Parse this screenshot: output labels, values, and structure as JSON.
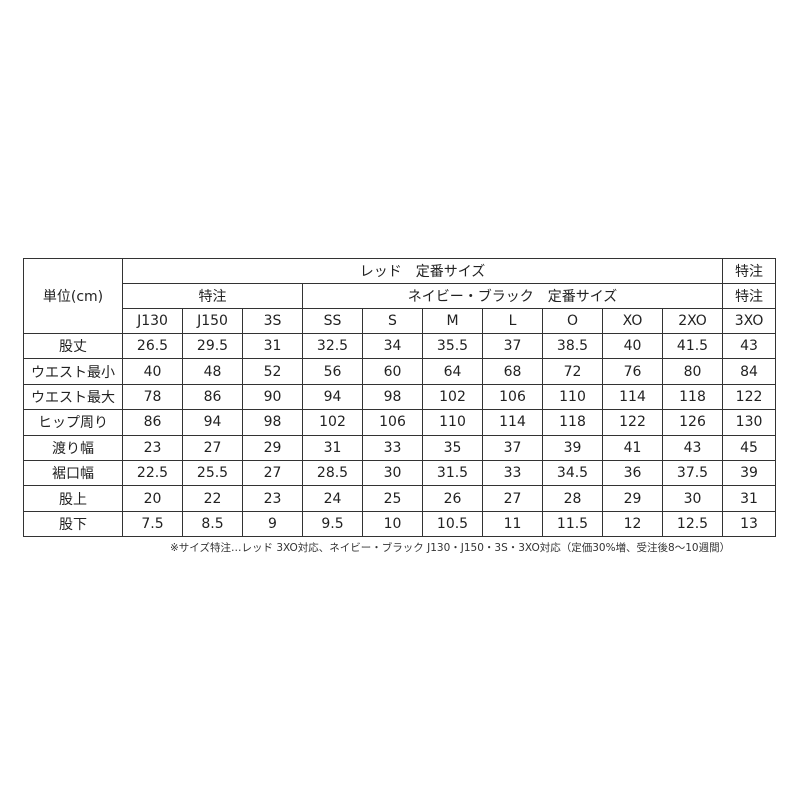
{
  "unit_label": "単位(cm)",
  "header_row1": {
    "red_standard": "レッド　定番サイズ",
    "special": "特注"
  },
  "header_row2": {
    "special_left": "特注",
    "navy_black_standard": "ネイビー・ブラック　定番サイズ",
    "special_right": "特注"
  },
  "sizes": [
    "J130",
    "J150",
    "3S",
    "SS",
    "S",
    "M",
    "L",
    "O",
    "XO",
    "2XO",
    "3XO"
  ],
  "rows": [
    {
      "label": "股丈",
      "values": [
        "26.5",
        "29.5",
        "31",
        "32.5",
        "34",
        "35.5",
        "37",
        "38.5",
        "40",
        "41.5",
        "43"
      ]
    },
    {
      "label": "ウエスト最小",
      "values": [
        "40",
        "48",
        "52",
        "56",
        "60",
        "64",
        "68",
        "72",
        "76",
        "80",
        "84"
      ]
    },
    {
      "label": "ウエスト最大",
      "values": [
        "78",
        "86",
        "90",
        "94",
        "98",
        "102",
        "106",
        "110",
        "114",
        "118",
        "122"
      ]
    },
    {
      "label": "ヒップ周り",
      "values": [
        "86",
        "94",
        "98",
        "102",
        "106",
        "110",
        "114",
        "118",
        "122",
        "126",
        "130"
      ]
    },
    {
      "label": "渡り幅",
      "values": [
        "23",
        "27",
        "29",
        "31",
        "33",
        "35",
        "37",
        "39",
        "41",
        "43",
        "45"
      ]
    },
    {
      "label": "裾口幅",
      "values": [
        "22.5",
        "25.5",
        "27",
        "28.5",
        "30",
        "31.5",
        "33",
        "34.5",
        "36",
        "37.5",
        "39"
      ]
    },
    {
      "label": "股上",
      "values": [
        "20",
        "22",
        "23",
        "24",
        "25",
        "26",
        "27",
        "28",
        "29",
        "30",
        "31"
      ]
    },
    {
      "label": "股下",
      "values": [
        "7.5",
        "8.5",
        "9",
        "9.5",
        "10",
        "10.5",
        "11",
        "11.5",
        "12",
        "12.5",
        "13"
      ]
    }
  ],
  "footnote": "※サイズ特注…レッド 3XO対応、ネイビー・ブラック J130・J150・3S・3XO対応（定価30%増、受注後8～10週間）"
}
